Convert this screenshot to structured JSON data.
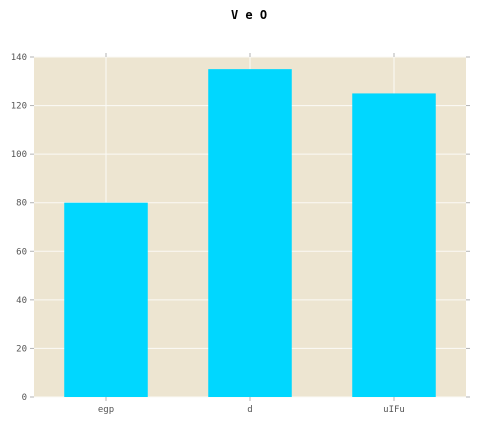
{
  "chart_data": {
    "type": "bar",
    "title": "V e O",
    "xlabel": "",
    "ylabel": "",
    "categories": [
      "egp",
      "d",
      "uIFu"
    ],
    "values": [
      80,
      135,
      125
    ],
    "ylim": [
      0,
      140
    ],
    "yticks": [
      0,
      20,
      40,
      60,
      80,
      100,
      120,
      140
    ],
    "grid": true,
    "colors": {
      "bar": "#00d7ff",
      "plot_background": "#ede5d1",
      "grid": "#fbfaf6",
      "axis_tick": "#b3b3b3",
      "tick_label": "#555555",
      "title": "#000000"
    }
  }
}
